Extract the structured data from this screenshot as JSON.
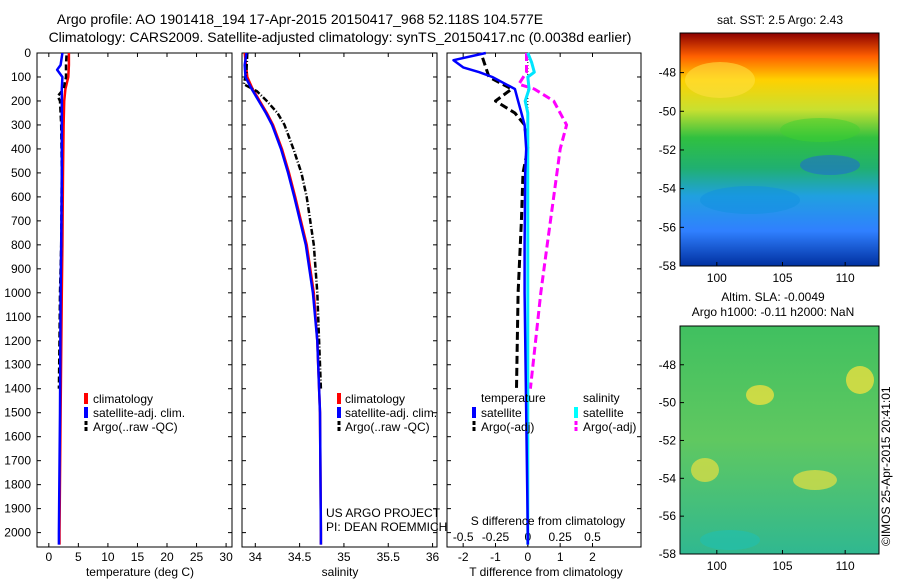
{
  "header": {
    "title_line1": "Argo profile: AO 1901418_194 17-Apr-2015 20150417_968 52.118S 104.577E",
    "title_line2": "Climatology: CARS2009. Satellite-adjusted climatology: synTS_20150417.nc (0.0038d earlier)"
  },
  "colors": {
    "climatology": "#ff0000",
    "satellite": "#0000ff",
    "argo": "#000000",
    "salinity_sat": "#00ffff",
    "salinity_argo": "#ff00ff"
  },
  "depth_ticks": [
    0,
    100,
    200,
    300,
    400,
    500,
    600,
    700,
    800,
    900,
    1000,
    1100,
    1200,
    1300,
    1400,
    1500,
    1600,
    1700,
    1800,
    1900,
    2000
  ],
  "chart_data": [
    {
      "type": "line",
      "xlabel": "temperature (deg C)",
      "xticks": [
        0,
        5,
        10,
        15,
        20,
        25,
        30
      ],
      "xlim": [
        -2,
        31
      ],
      "ylim": [
        2060,
        0
      ],
      "legend": {
        "climatology": "climatology",
        "satellite": "satellite-adj. clim.",
        "argo": "Argo(..raw -QC)"
      },
      "series": [
        {
          "name": "climatology",
          "depth": [
            0,
            50,
            100,
            150,
            200,
            300,
            500,
            800,
            1000,
            1500,
            2000,
            2050
          ],
          "values": [
            3.4,
            3.4,
            3.3,
            2.8,
            2.6,
            2.5,
            2.4,
            2.3,
            2.2,
            2.0,
            1.8,
            1.8
          ]
        },
        {
          "name": "satellite-adj. clim.",
          "depth": [
            0,
            50,
            70,
            100,
            150,
            200,
            300,
            500,
            800,
            1000,
            1500,
            2000,
            2050
          ],
          "values": [
            2.3,
            2.0,
            1.4,
            2.3,
            2.2,
            2.2,
            2.2,
            2.2,
            2.1,
            2.0,
            1.9,
            1.7,
            1.7
          ]
        },
        {
          "name": "Argo(..raw -QC)",
          "depth": [
            10,
            50,
            100,
            150,
            180,
            200,
            300,
            500,
            800,
            1000,
            1200,
            1400
          ],
          "values": [
            3.0,
            2.9,
            2.9,
            2.5,
            1.5,
            1.9,
            2.1,
            2.2,
            2.1,
            1.9,
            1.8,
            1.7
          ]
        }
      ]
    },
    {
      "type": "line",
      "xlabel": "salinity",
      "xticks": [
        34,
        34.5,
        35,
        35.5,
        36
      ],
      "xlim": [
        33.85,
        36.05
      ],
      "ylim": [
        2060,
        0
      ],
      "legend": {
        "climatology": "climatology",
        "satellite": "satellite-adj. clim.",
        "argo": "Argo(..raw -QC)"
      },
      "credit": [
        "US ARGO PROJECT",
        "PI: DEAN ROEMMICH"
      ],
      "series": [
        {
          "name": "climatology",
          "depth": [
            0,
            100,
            150,
            200,
            250,
            300,
            400,
            500,
            600,
            800,
            1000,
            1200,
            1500,
            2000,
            2050
          ],
          "values": [
            33.88,
            33.91,
            33.97,
            34.05,
            34.13,
            34.2,
            34.3,
            34.38,
            34.45,
            34.58,
            34.66,
            34.7,
            34.73,
            34.74,
            34.74
          ]
        },
        {
          "name": "satellite-adj. clim.",
          "depth": [
            0,
            50,
            100,
            150,
            200,
            250,
            300,
            400,
            500,
            600,
            800,
            1000,
            1200,
            1500,
            2000,
            2050
          ],
          "values": [
            33.9,
            33.88,
            33.89,
            33.96,
            34.04,
            34.12,
            34.19,
            34.29,
            34.37,
            34.44,
            34.57,
            34.65,
            34.7,
            34.73,
            34.74,
            34.74
          ]
        },
        {
          "name": "Argo(..raw -QC)",
          "depth": [
            0,
            80,
            130,
            160,
            200,
            250,
            300,
            400,
            500,
            600,
            800,
            1000,
            1200,
            1400
          ],
          "values": [
            33.91,
            33.9,
            33.87,
            34.02,
            34.13,
            34.25,
            34.33,
            34.43,
            34.52,
            34.58,
            34.66,
            34.7,
            34.72,
            34.74
          ]
        }
      ]
    },
    {
      "type": "line",
      "xlabel": "T difference from climatology",
      "xlabel_top": "S difference from climatology",
      "xticks": [
        -2,
        -1,
        0,
        1,
        2
      ],
      "xticks_top": [
        "-0.5",
        "-0.25",
        "0",
        "0.25",
        "0.5"
      ],
      "xticks_top_values": [
        -0.5,
        -0.25,
        0,
        0.25,
        0.5
      ],
      "xlim": [
        -2.5,
        3.5
      ],
      "ylim": [
        2060,
        0
      ],
      "legend": {
        "temperature": "temperature",
        "salinity": "salinity",
        "t_sat": "satellite",
        "t_argo": "Argo(-adj)",
        "s_sat": "satellite",
        "s_argo": "Argo(-adj)"
      },
      "series": [
        {
          "name": "T satellite",
          "depth": [
            0,
            30,
            60,
            80,
            100,
            150,
            200,
            250,
            300,
            400,
            500,
            800,
            1000,
            1500,
            2000,
            2050
          ],
          "values": [
            -1.3,
            -2.3,
            -2.0,
            -1.5,
            -1.1,
            -0.4,
            -0.3,
            -0.2,
            -0.1,
            -0.05,
            -0.08,
            -0.1,
            -0.1,
            -0.05,
            0,
            0
          ]
        },
        {
          "name": "T Argo(-adj)",
          "depth": [
            20,
            60,
            100,
            150,
            200,
            250,
            300,
            400,
            500,
            700,
            1000,
            1400
          ],
          "values": [
            -1.4,
            -1.3,
            -1.2,
            -0.5,
            -1.0,
            -0.4,
            -0.1,
            0.0,
            -0.15,
            -0.2,
            -0.3,
            -0.35
          ]
        },
        {
          "name": "S satellite",
          "depth": [
            0,
            40,
            80,
            100,
            150,
            200,
            250,
            300,
            400,
            500,
            1000,
            1500,
            2000,
            2050
          ],
          "values": [
            0,
            0.03,
            0.05,
            0,
            0.01,
            -0.02,
            0,
            0,
            0,
            0,
            0,
            0,
            0,
            0
          ]
        },
        {
          "name": "S Argo(-adj)",
          "depth": [
            0,
            80,
            130,
            150,
            200,
            300,
            400,
            600,
            800,
            1000,
            1200,
            1400
          ],
          "values": [
            -0.01,
            -0.01,
            -0.07,
            0.05,
            0.2,
            0.3,
            0.25,
            0.2,
            0.15,
            0.1,
            0.06,
            0.02
          ]
        }
      ]
    }
  ],
  "map1": {
    "title": "sat. SST: 2.5  Argo: 2.43",
    "xticks": [
      "100",
      "105",
      "110"
    ],
    "yticks": [
      "-48",
      "-50",
      "-52",
      "-54",
      "-56",
      "-58"
    ]
  },
  "map2": {
    "title_line1": "Altim. SLA: -0.0049",
    "title_line2": "Argo h1000: -0.11  h2000: NaN",
    "xticks": [
      "100",
      "105",
      "110"
    ],
    "yticks": [
      "-48",
      "-50",
      "-52",
      "-54",
      "-56",
      "-58"
    ]
  },
  "footer": {
    "stamp": "©IMOS 25-Apr-2015 20:41:01"
  }
}
